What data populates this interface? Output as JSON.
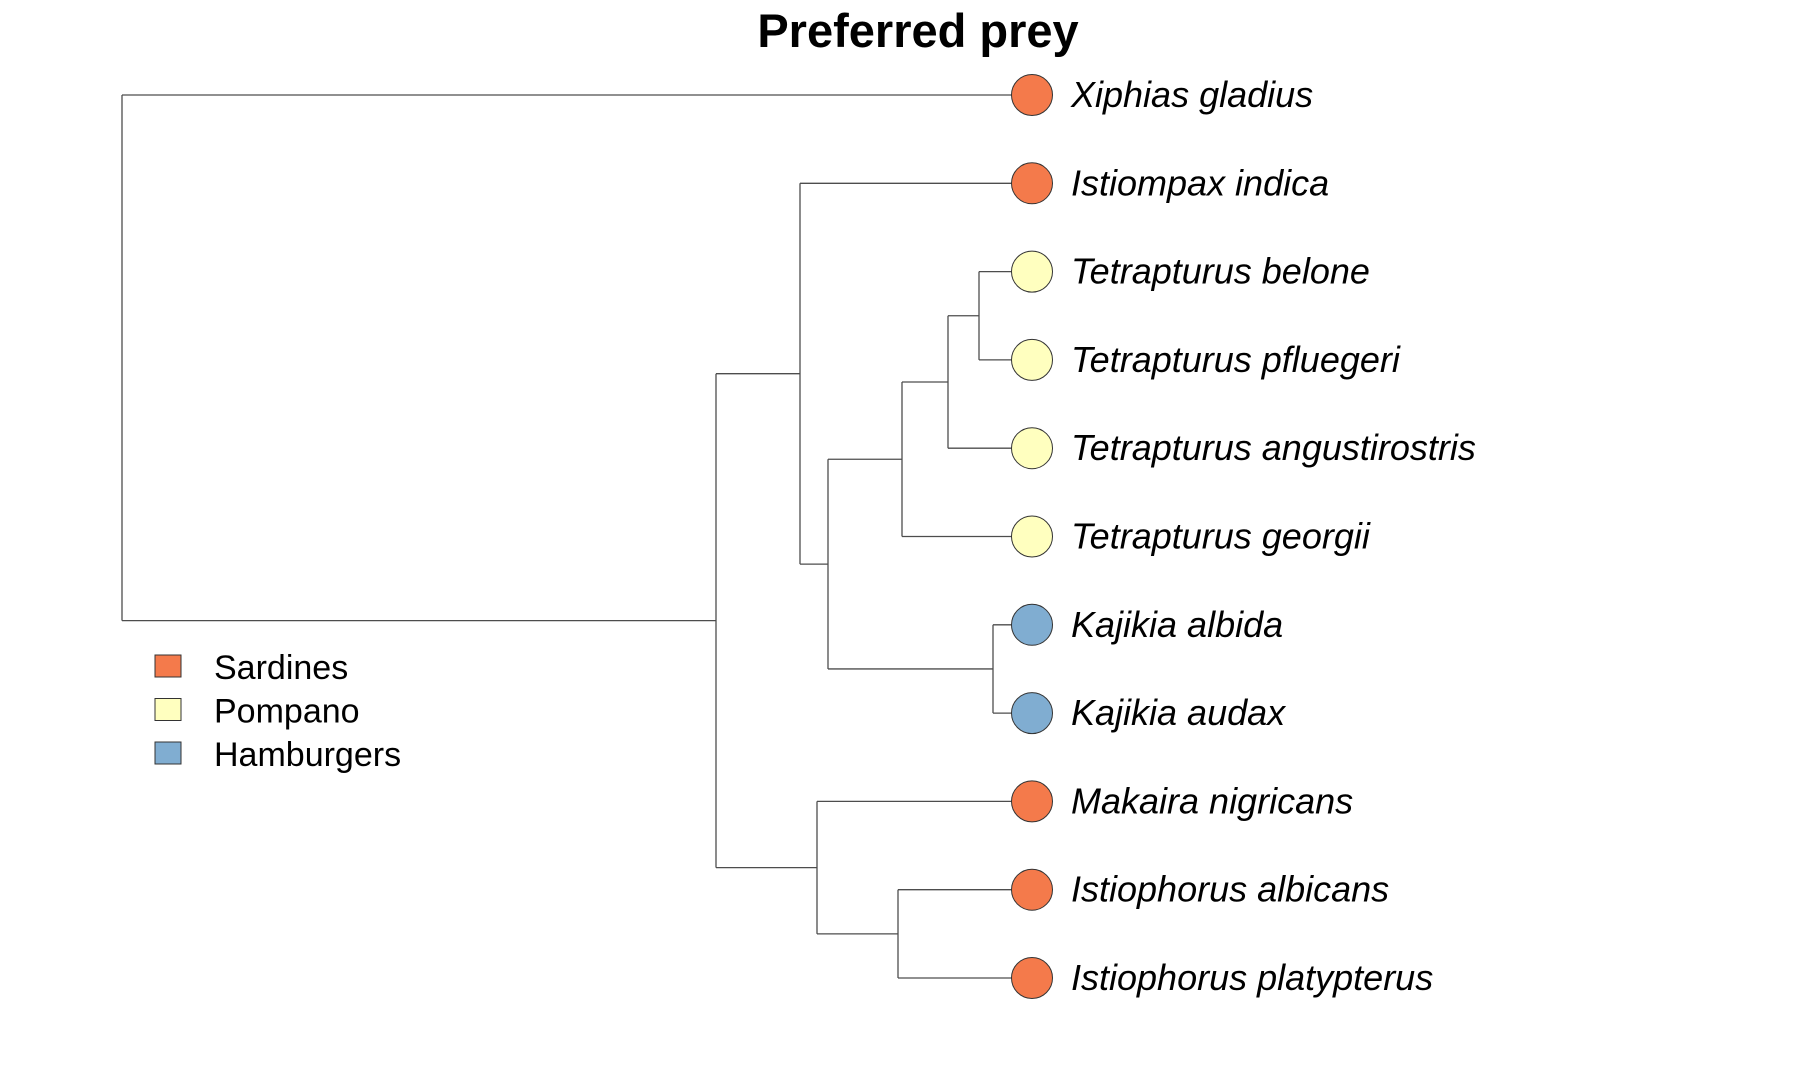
{
  "title": "Preferred prey",
  "colors": {
    "Sardines": "#f47a4b",
    "Pompano": "#ffffbf",
    "Hamburgers": "#80add1",
    "branch": "#4d4d4d"
  },
  "legend": [
    {
      "label": "Sardines",
      "color": "#f47a4b"
    },
    {
      "label": "Pompano",
      "color": "#ffffbf"
    },
    {
      "label": "Hamburgers",
      "color": "#80add1"
    }
  ],
  "tips": [
    {
      "name": "Xiphias gladius",
      "prey": "Sardines"
    },
    {
      "name": "Istiompax indica",
      "prey": "Sardines"
    },
    {
      "name": "Tetrapturus belone",
      "prey": "Pompano"
    },
    {
      "name": "Tetrapturus pfluegeri",
      "prey": "Pompano"
    },
    {
      "name": "Tetrapturus angustirostris",
      "prey": "Pompano"
    },
    {
      "name": "Tetrapturus georgii",
      "prey": "Pompano"
    },
    {
      "name": "Kajikia albida",
      "prey": "Hamburgers"
    },
    {
      "name": "Kajikia audax",
      "prey": "Hamburgers"
    },
    {
      "name": "Makaira nigricans",
      "prey": "Sardines"
    },
    {
      "name": "Istiophorus albicans",
      "prey": "Sardines"
    },
    {
      "name": "Istiophorus platypterus",
      "prey": "Sardines"
    }
  ],
  "tree": "(Xiphias gladius,((Istiompax indica,((((Tetrapturus belone,Tetrapturus pfluegeri),Tetrapturus angustirostris),Tetrapturus georgii),(Kajikia albida,Kajikia audax))),(Makaira nigricans,(Istiophorus albicans,Istiophorus platypterus))));"
}
